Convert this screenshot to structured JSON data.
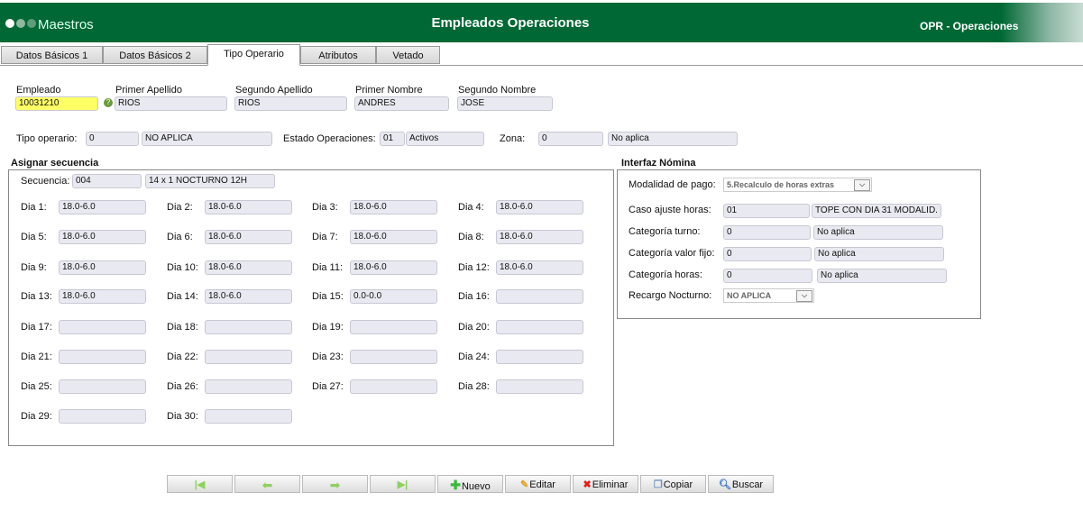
{
  "header": {
    "module": "Maestros",
    "title": "Empleados Operaciones",
    "system": "OPR - Operaciones"
  },
  "tabs": [
    "Datos Básicos 1",
    "Datos Básicos 2",
    "Tipo Operario",
    "Atributos",
    "Vetado"
  ],
  "employee": {
    "labels": [
      "Empleado",
      "Primer Apellido",
      "Segundo Apellido",
      "Primer Nombre",
      "Segundo Nombre"
    ],
    "values": [
      "10031210",
      "RIOS",
      "RIOS",
      "ANDRES",
      "JOSE"
    ]
  },
  "row2": {
    "tipo_label": "Tipo operario:",
    "tipo_code": "0",
    "tipo_desc": "NO APLICA",
    "estado_label": "Estado Operaciones:",
    "estado_code": "01",
    "estado_desc": "Activos",
    "zona_label": "Zona:",
    "zona_code": "0",
    "zona_desc": "No aplica"
  },
  "secuencia": {
    "title": "Asignar secuencia",
    "label": "Secuencia:",
    "code": "004",
    "desc": "14 x 1 NOCTURNO 12H",
    "days": [
      {
        "label": "Dia 1:",
        "value": "18.0-6.0"
      },
      {
        "label": "Dia 2:",
        "value": "18.0-6.0"
      },
      {
        "label": "Dia 3:",
        "value": "18.0-6.0"
      },
      {
        "label": "Dia 4:",
        "value": "18.0-6.0"
      },
      {
        "label": "Dia 5:",
        "value": "18.0-6.0"
      },
      {
        "label": "Dia 6:",
        "value": "18.0-6.0"
      },
      {
        "label": "Dia 7:",
        "value": "18.0-6.0"
      },
      {
        "label": "Dia 8:",
        "value": "18.0-6.0"
      },
      {
        "label": "Dia 9:",
        "value": "18.0-6.0"
      },
      {
        "label": "Dia 10:",
        "value": "18.0-6.0"
      },
      {
        "label": "Dia 11:",
        "value": "18.0-6.0"
      },
      {
        "label": "Dia 12:",
        "value": "18.0-6.0"
      },
      {
        "label": "Dia 13:",
        "value": "18.0-6.0"
      },
      {
        "label": "Dia 14:",
        "value": "18.0-6.0"
      },
      {
        "label": "Dia 15:",
        "value": "0.0-0.0"
      },
      {
        "label": "Dia 16:",
        "value": ""
      },
      {
        "label": "Dia 17:",
        "value": ""
      },
      {
        "label": "Dia 18:",
        "value": ""
      },
      {
        "label": "Dia 19:",
        "value": ""
      },
      {
        "label": "Dia 20:",
        "value": ""
      },
      {
        "label": "Dia 21:",
        "value": ""
      },
      {
        "label": "Dia 22:",
        "value": ""
      },
      {
        "label": "Dia 23:",
        "value": ""
      },
      {
        "label": "Dia 24:",
        "value": ""
      },
      {
        "label": "Dia 25:",
        "value": ""
      },
      {
        "label": "Dia 26:",
        "value": ""
      },
      {
        "label": "Dia 27:",
        "value": ""
      },
      {
        "label": "Dia 28:",
        "value": ""
      },
      {
        "label": "Dia 29:",
        "value": ""
      },
      {
        "label": "Dia 30:",
        "value": ""
      }
    ]
  },
  "nomina": {
    "title": "Interfaz Nómina",
    "modalidad_label": "Modalidad de pago:",
    "modalidad_value": "5.Recalculo de horas extras",
    "rows": [
      {
        "label": "Caso ajuste horas:",
        "code": "01",
        "desc": "TOPE CON DIA 31 MODALID."
      },
      {
        "label": "Categoría turno:",
        "code": "0",
        "desc": "No aplica"
      },
      {
        "label": "Categoría valor fijo:",
        "code": "0",
        "desc": "No aplica"
      },
      {
        "label": "Categoría horas:",
        "code": "0",
        "desc": "No aplica"
      }
    ],
    "recargo_label": "Recargo Nocturno:",
    "recargo_value": "NO APLICA"
  },
  "toolbar": {
    "nuevo": "Nuevo",
    "editar": "Editar",
    "eliminar": "Eliminar",
    "copiar": "Copiar",
    "buscar": "Buscar"
  },
  "colors": {
    "header": "#006834",
    "required": "#ffff66"
  }
}
